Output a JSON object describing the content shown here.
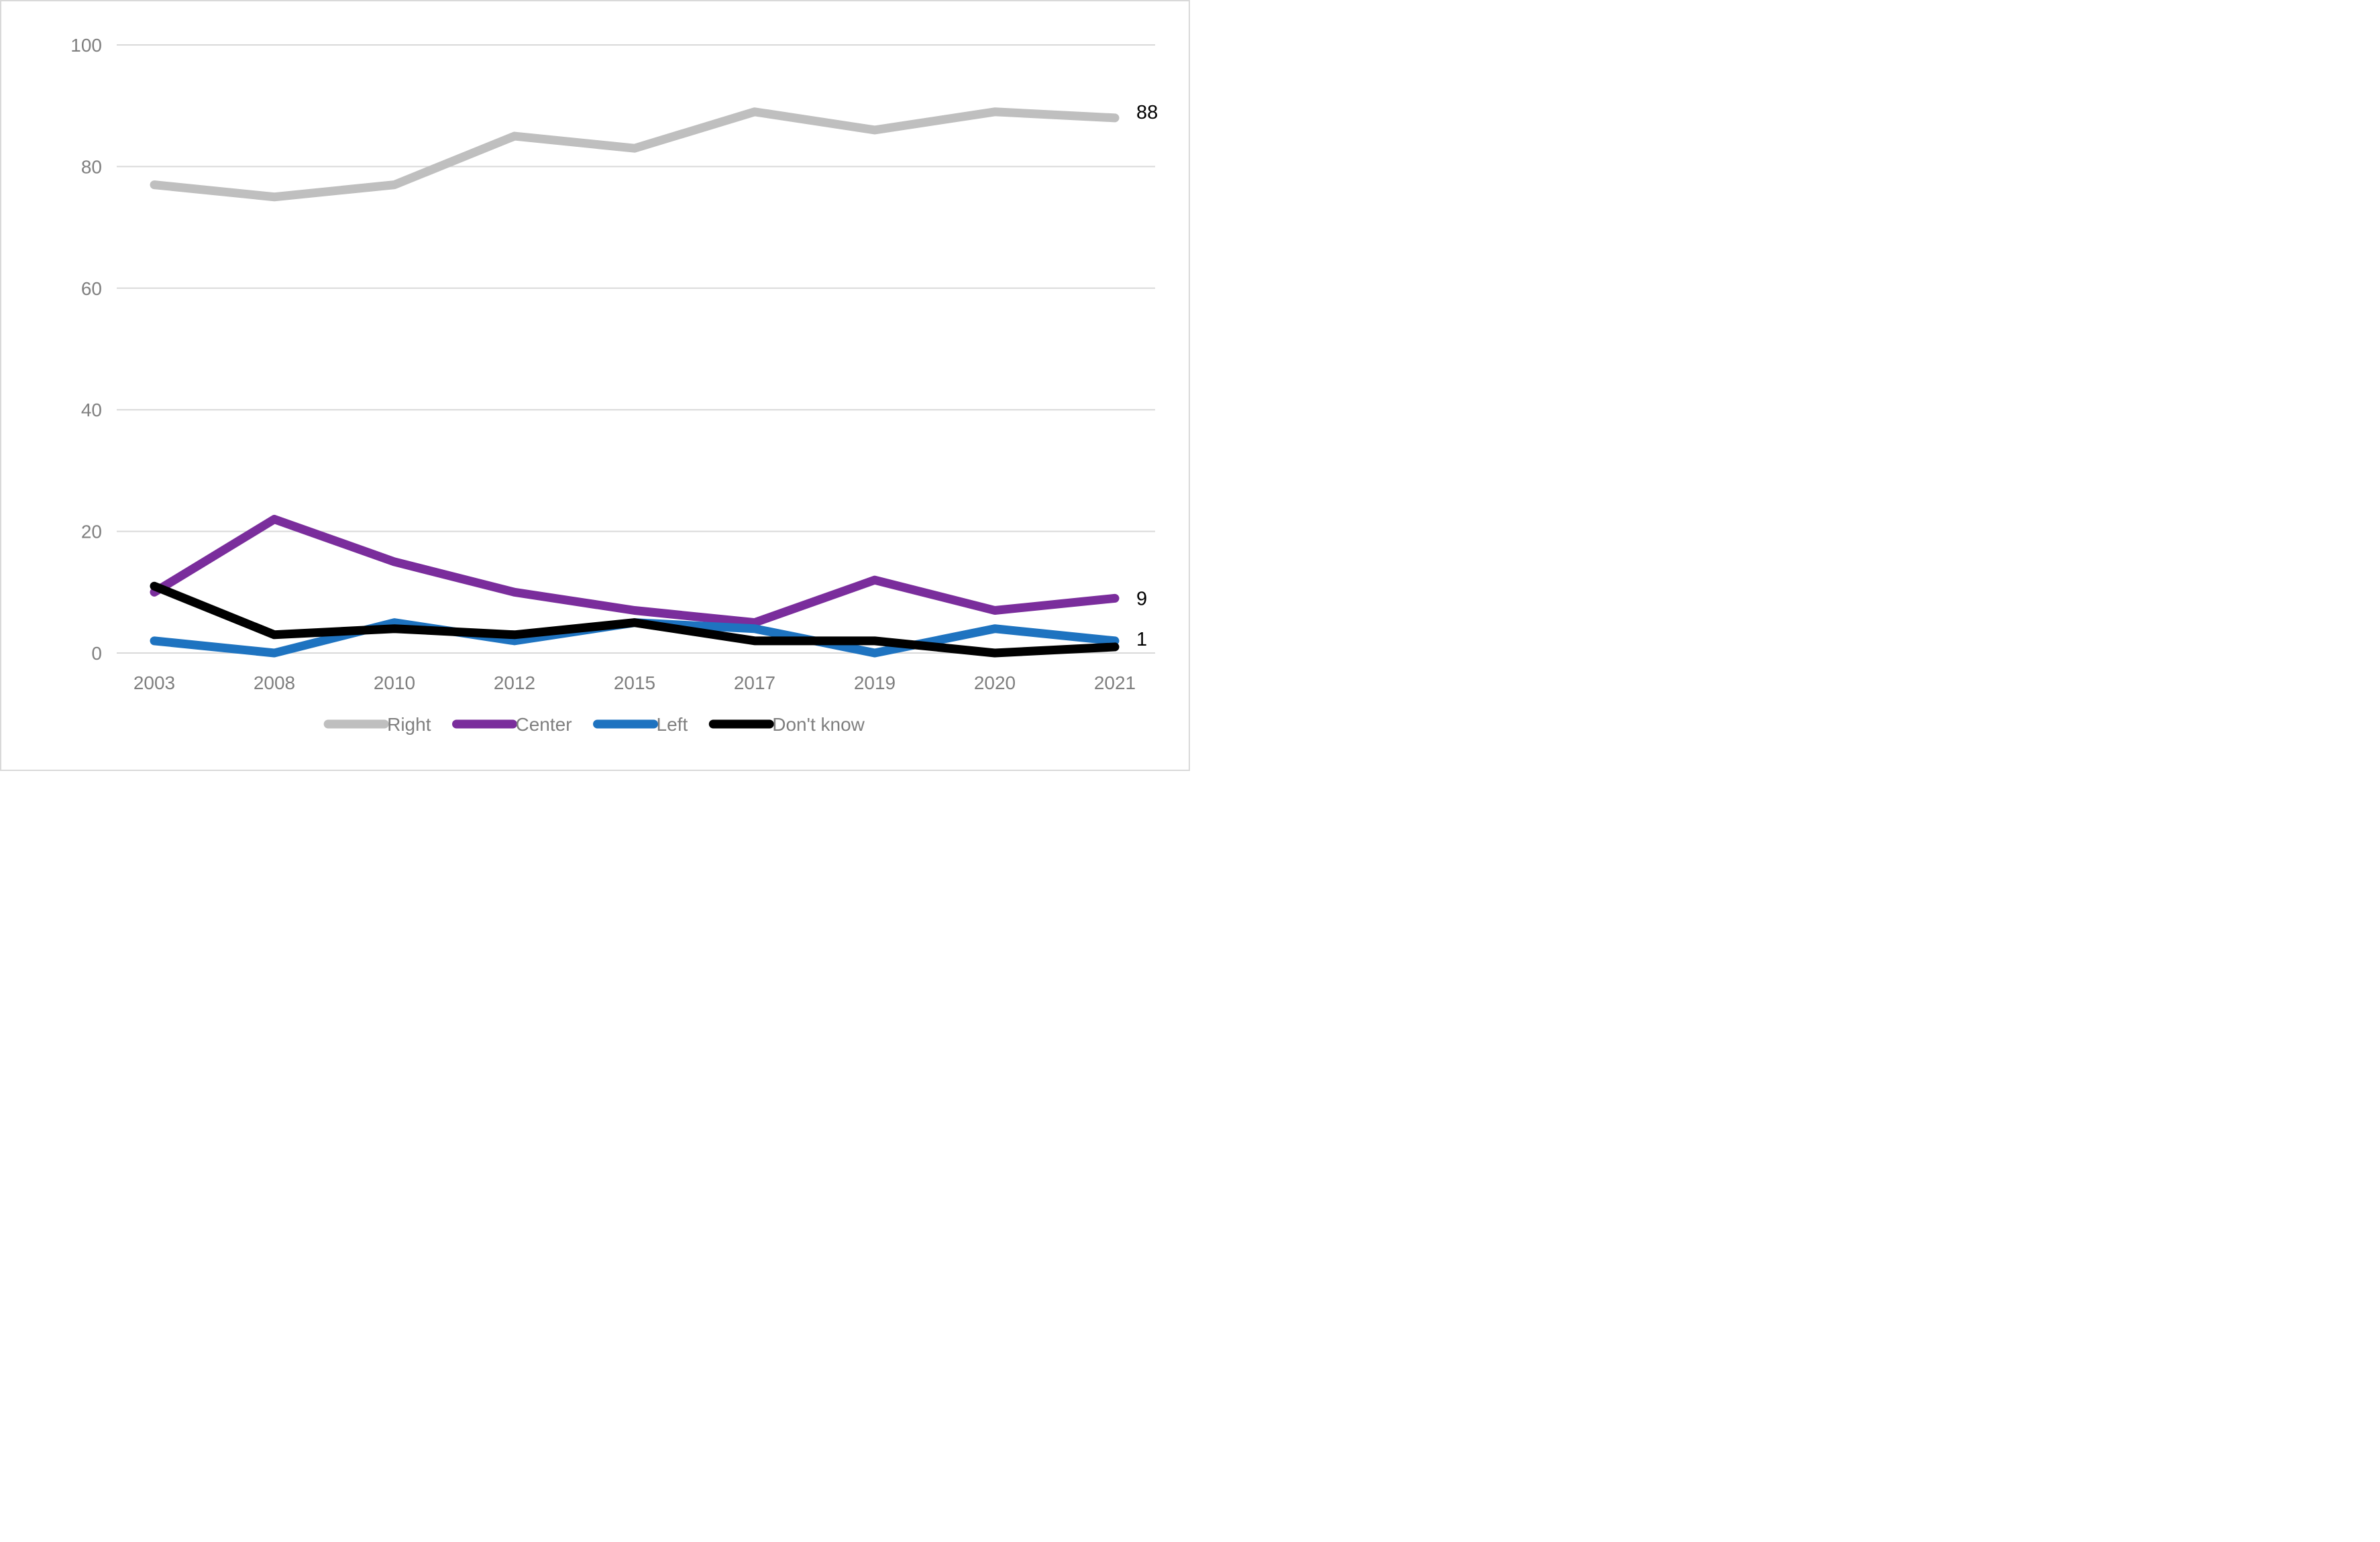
{
  "chart_data": {
    "type": "line",
    "title": "",
    "xlabel": "",
    "ylabel": "",
    "categories": [
      "2003",
      "2008",
      "2010",
      "2012",
      "2015",
      "2017",
      "2019",
      "2020",
      "2021"
    ],
    "series": [
      {
        "name": "Right",
        "color": "#BFBFBF",
        "values": [
          77,
          75,
          77,
          85,
          83,
          89,
          86,
          89,
          88
        ],
        "end_label": "88"
      },
      {
        "name": "Center",
        "color": "#7A2D9C",
        "values": [
          10,
          22,
          15,
          10,
          7,
          5,
          12,
          7,
          9
        ],
        "end_label": "9"
      },
      {
        "name": "Left",
        "color": "#1E73C0",
        "values": [
          2,
          0,
          5,
          2,
          5,
          4,
          0,
          4,
          2
        ],
        "end_label": ""
      },
      {
        "name": "Don't know",
        "color": "#000000",
        "values": [
          11,
          3,
          4,
          3,
          5,
          2,
          2,
          0,
          1
        ],
        "end_label": "1"
      }
    ],
    "y_ticks": [
      "0",
      "20",
      "40",
      "60",
      "80",
      "100"
    ],
    "ylim": [
      0,
      100
    ],
    "grid": true,
    "legend_position": "bottom"
  },
  "styles": {
    "gridline_color": "#D9D9D9",
    "axis_text_color": "#7F7F7F",
    "legend_text_color": "#7F7F7F",
    "data_label_color": "#000000",
    "border_color": "#D9D9D9",
    "background_color": "#FFFFFF"
  }
}
